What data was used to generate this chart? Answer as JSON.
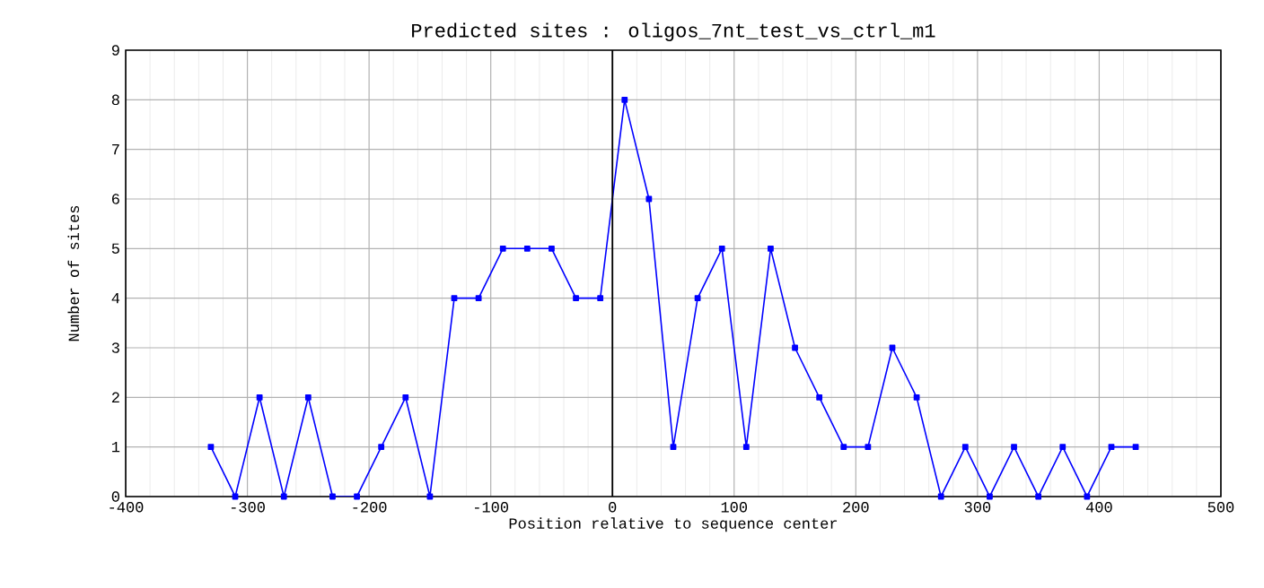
{
  "chart_data": {
    "type": "line",
    "title": "Predicted sites : oligos_7nt_test_vs_ctrl_m1",
    "xlabel": "Position relative to sequence center",
    "ylabel": "Number of sites",
    "x": [
      -330,
      -310,
      -290,
      -270,
      -250,
      -230,
      -210,
      -190,
      -170,
      -150,
      -130,
      -110,
      -90,
      -70,
      -50,
      -30,
      -10,
      10,
      30,
      50,
      70,
      90,
      110,
      130,
      150,
      170,
      190,
      210,
      230,
      250,
      270,
      290,
      310,
      330,
      350,
      370,
      390,
      410,
      430
    ],
    "series": [
      {
        "color": "#0000ff",
        "values": [
          1,
          0,
          2,
          0,
          2,
          0,
          0,
          1,
          2,
          0,
          4,
          4,
          5,
          5,
          5,
          4,
          4,
          8,
          6,
          1,
          4,
          5,
          1,
          5,
          3,
          2,
          1,
          1,
          3,
          2,
          0,
          1,
          0,
          1,
          0,
          1,
          0,
          1,
          1
        ]
      }
    ],
    "xlim": [
      -400,
      500
    ],
    "xticks": [
      -400,
      -300,
      -200,
      -100,
      0,
      100,
      200,
      300,
      400,
      500
    ],
    "ylim": [
      0,
      9
    ],
    "yticks": [
      0,
      1,
      2,
      3,
      4,
      5,
      6,
      7,
      8,
      9
    ],
    "grid": true,
    "marker": "square",
    "line_style": "solid",
    "ref_lines": [
      {
        "axis": "x",
        "value": 0,
        "color": "#000000"
      }
    ]
  }
}
